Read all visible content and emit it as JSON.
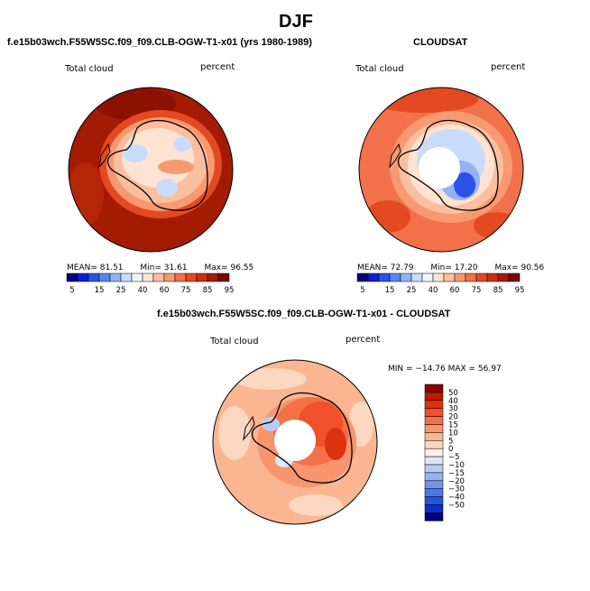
{
  "page": {
    "title": "DJF"
  },
  "panels": [
    {
      "title": "f.e15b03wch.F55W5SC.f09_f09.CLB-OGW-T1-x01 (yrs 1980-1989)",
      "variable": "Total cloud",
      "units": "percent",
      "stats": {
        "mean_label": "MEAN=",
        "mean": "81.51",
        "min_label": "Min=",
        "min": "31.61",
        "max_label": "Max=",
        "max": "96.55"
      }
    },
    {
      "title": "CLOUDSAT",
      "variable": "Total cloud",
      "units": "percent",
      "stats": {
        "mean_label": "MEAN=",
        "mean": "72.79",
        "min_label": "Min=",
        "min": "17.20",
        "max_label": "Max=",
        "max": "90.56"
      }
    },
    {
      "title": "f.e15b03wch.F55W5SC.f09_f09.CLB-OGW-T1-x01 - CLOUDSAT",
      "variable": "Total cloud",
      "units": "percent",
      "stats_line": "MIN = −14.76 MAX =  56.97"
    }
  ],
  "colorbar_abs": {
    "labels": [
      "5",
      "15",
      "25",
      "40",
      "60",
      "75",
      "85",
      "95"
    ],
    "colors": [
      "#08007f",
      "#0d1fd6",
      "#2a52e6",
      "#5b85ee",
      "#93b2f5",
      "#c9dbfb",
      "#f2f4fb",
      "#fde3d2",
      "#fbbfa0",
      "#f79a72",
      "#f2704a",
      "#e44a22",
      "#c9300e",
      "#a41b04",
      "#7a0a00"
    ]
  },
  "colorbar_diff": {
    "labels": [
      "50",
      "40",
      "30",
      "20",
      "15",
      "10",
      "5",
      "0",
      "−5",
      "−10",
      "−15",
      "−20",
      "−30",
      "−40",
      "−50"
    ],
    "colors": [
      "#8b0000",
      "#b81a04",
      "#dd3210",
      "#f0502a",
      "#f47048",
      "#f7956e",
      "#fab592",
      "#fcd8c0",
      "#fdf0e6",
      "#dde7f9",
      "#b8cdf4",
      "#93b2f1",
      "#6e95ec",
      "#4a78e8",
      "#2255e0",
      "#0a2fd0",
      "#00007f"
    ]
  },
  "chart_data": [
    {
      "type": "heatmap",
      "title": "f.e15b03wch.F55W5SC.f09_f09.CLB-OGW-T1-x01 (yrs 1980-1989)",
      "variable": "Total cloud",
      "units": "percent",
      "mean": 81.51,
      "min": 31.61,
      "max": 96.55,
      "levels": [
        5,
        15,
        25,
        40,
        60,
        75,
        85,
        95
      ]
    },
    {
      "type": "heatmap",
      "title": "CLOUDSAT",
      "variable": "Total cloud",
      "units": "percent",
      "mean": 72.79,
      "min": 17.2,
      "max": 90.56,
      "levels": [
        5,
        15,
        25,
        40,
        60,
        75,
        85,
        95
      ]
    },
    {
      "type": "heatmap",
      "title": "f.e15b03wch.F55W5SC.f09_f09.CLB-OGW-T1-x01 - CLOUDSAT",
      "variable": "Total cloud",
      "units": "percent",
      "min": -14.76,
      "max": 56.97,
      "levels": [
        -50,
        -40,
        -30,
        -20,
        -15,
        -10,
        -5,
        0,
        5,
        10,
        15,
        20,
        30,
        40,
        50
      ]
    }
  ]
}
